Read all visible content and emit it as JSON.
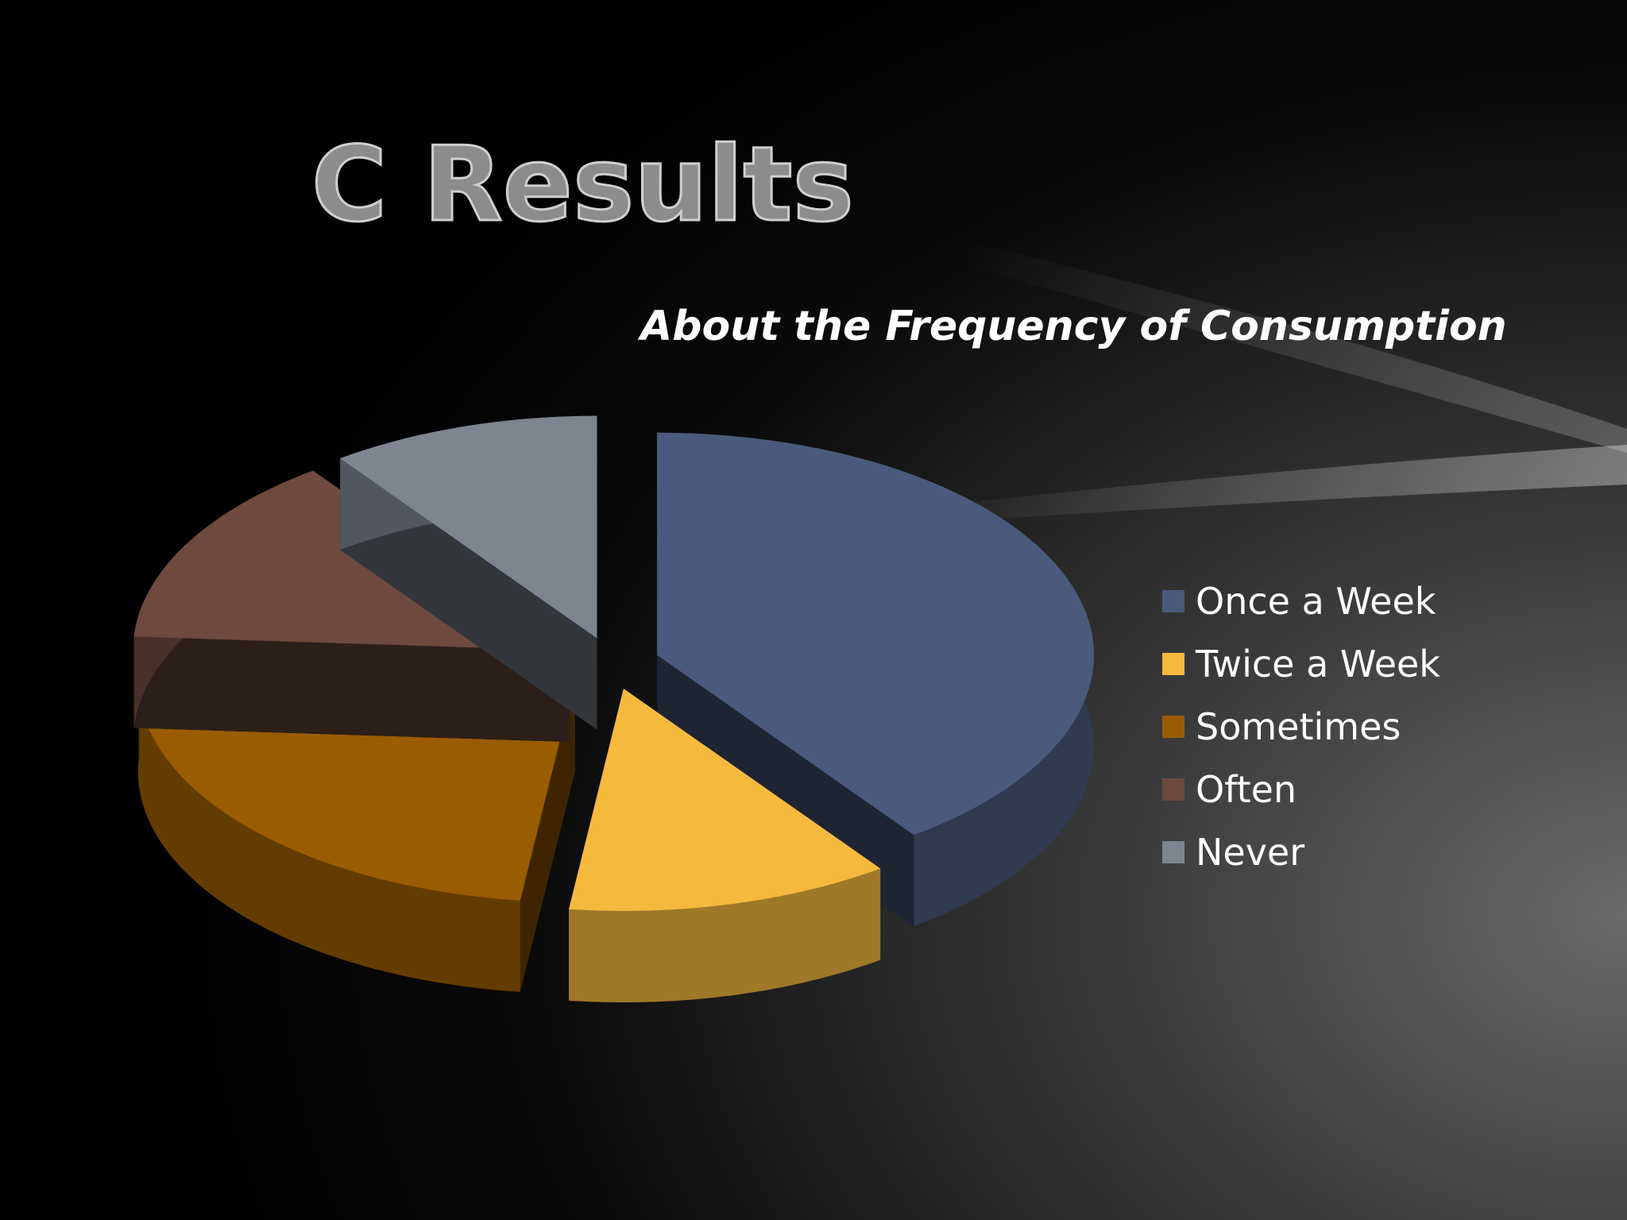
{
  "chart_data": {
    "type": "pie",
    "title": "C Results",
    "subtitle": "About the Frequency of Consumption",
    "categories": [
      "Once a Week",
      "Twice a Week",
      "Sometimes",
      "Often",
      "Never"
    ],
    "values": [
      40,
      12,
      24,
      14,
      10
    ],
    "colors": [
      "#4a5a7c",
      "#f5b93e",
      "#9a5c00",
      "#6e4a3e",
      "#7e8590"
    ],
    "legend": "right",
    "exploded": true,
    "three_d": true
  }
}
